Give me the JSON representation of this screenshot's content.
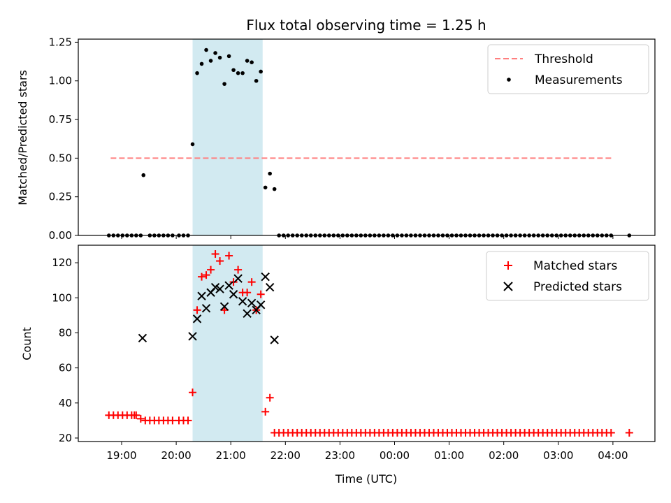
{
  "chart_data": [
    {
      "type": "scatter",
      "title": "Flux total observing time = 1.25 h",
      "xlabel": "",
      "ylabel": "Matched/Predicted stars",
      "ylim": [
        0,
        1.27
      ],
      "yticks": [
        "0.00",
        "0.25",
        "0.50",
        "0.75",
        "1.00",
        "1.25"
      ],
      "ytick_values": [
        0,
        0.25,
        0.5,
        0.75,
        1.0,
        1.25
      ],
      "legend_position": "top-right",
      "shaded_region": {
        "x": [
          "20:18",
          "21:35"
        ],
        "color": "#add8e6"
      },
      "threshold": {
        "name": "Threshold",
        "y": 0.5,
        "x": [
          "18:48",
          "04:00"
        ],
        "color": "#ff7f7f",
        "style": "dashed"
      },
      "series": [
        {
          "name": "Measurements",
          "color": "#000000",
          "marker": "dot",
          "x": [
            "18:46",
            "18:51",
            "18:56",
            "19:01",
            "19:06",
            "19:11",
            "19:16",
            "19:21",
            "19:24",
            "19:31",
            "19:36",
            "19:41",
            "19:46",
            "19:51",
            "19:56",
            "20:03",
            "20:08",
            "20:13",
            "20:18",
            "20:23",
            "20:28",
            "20:33",
            "20:38",
            "20:43",
            "20:48",
            "20:53",
            "20:58",
            "21:03",
            "21:08",
            "21:13",
            "21:18",
            "21:23",
            "21:28",
            "21:33",
            "21:38",
            "21:43",
            "21:48",
            "21:53",
            "21:58",
            "22:03",
            "22:08",
            "22:13",
            "22:18",
            "22:23",
            "22:28",
            "22:33",
            "22:38",
            "22:43",
            "22:48",
            "22:53",
            "22:58",
            "23:03",
            "23:08",
            "23:13",
            "23:18",
            "23:23",
            "23:28",
            "23:33",
            "23:38",
            "23:43",
            "23:48",
            "23:53",
            "23:58",
            "00:03",
            "00:08",
            "00:13",
            "00:18",
            "00:23",
            "00:28",
            "00:33",
            "00:38",
            "00:43",
            "00:48",
            "00:53",
            "00:58",
            "01:03",
            "01:08",
            "01:13",
            "01:18",
            "01:23",
            "01:28",
            "01:33",
            "01:38",
            "01:43",
            "01:48",
            "01:53",
            "01:58",
            "02:03",
            "02:08",
            "02:13",
            "02:18",
            "02:23",
            "02:28",
            "02:33",
            "02:38",
            "02:43",
            "02:48",
            "02:53",
            "02:58",
            "03:03",
            "03:08",
            "03:13",
            "03:18",
            "03:23",
            "03:28",
            "03:33",
            "03:38",
            "03:43",
            "03:48",
            "03:53",
            "03:58",
            "04:18"
          ],
          "y": [
            0,
            0,
            0,
            0,
            0,
            0,
            0,
            0,
            0.39,
            0,
            0,
            0,
            0,
            0,
            0,
            0,
            0,
            0,
            0.59,
            1.05,
            1.11,
            1.2,
            1.13,
            1.18,
            1.15,
            0.98,
            1.16,
            1.07,
            1.05,
            1.05,
            1.13,
            1.12,
            1.0,
            1.06,
            0.31,
            0.4,
            0.3,
            0,
            0,
            0,
            0,
            0,
            0,
            0,
            0,
            0,
            0,
            0,
            0,
            0,
            0,
            0,
            0,
            0,
            0,
            0,
            0,
            0,
            0,
            0,
            0,
            0,
            0,
            0,
            0,
            0,
            0,
            0,
            0,
            0,
            0,
            0,
            0,
            0,
            0,
            0,
            0,
            0,
            0,
            0,
            0,
            0,
            0,
            0,
            0,
            0,
            0,
            0,
            0,
            0,
            0,
            0,
            0,
            0,
            0,
            0,
            0,
            0,
            0,
            0,
            0,
            0,
            0,
            0,
            0,
            0,
            0,
            0,
            0,
            0,
            0,
            0
          ]
        }
      ]
    },
    {
      "type": "scatter",
      "title": "",
      "xlabel": "Time (UTC)",
      "ylabel": "Count",
      "ylim": [
        18,
        130
      ],
      "yticks": [
        "20",
        "40",
        "60",
        "80",
        "100",
        "120"
      ],
      "ytick_values": [
        20,
        40,
        60,
        80,
        100,
        120
      ],
      "xticks": [
        "19:00",
        "20:00",
        "21:00",
        "22:00",
        "23:00",
        "00:00",
        "01:00",
        "02:00",
        "03:00",
        "04:00"
      ],
      "legend_position": "top-right",
      "shaded_region": {
        "x": [
          "20:18",
          "21:35"
        ],
        "color": "#add8e6"
      },
      "series": [
        {
          "name": "Matched stars",
          "color": "#ff0000",
          "marker": "plus",
          "x": [
            "18:46",
            "18:51",
            "18:56",
            "19:01",
            "19:06",
            "19:11",
            "19:14",
            "19:16",
            "19:21",
            "19:26",
            "19:31",
            "19:36",
            "19:41",
            "19:46",
            "19:51",
            "19:56",
            "20:03",
            "20:08",
            "20:13",
            "20:18",
            "20:23",
            "20:28",
            "20:33",
            "20:38",
            "20:43",
            "20:48",
            "20:53",
            "20:58",
            "21:03",
            "21:08",
            "21:13",
            "21:18",
            "21:23",
            "21:28",
            "21:33",
            "21:38",
            "21:43",
            "21:48",
            "21:53",
            "21:58",
            "22:03",
            "22:08",
            "22:13",
            "22:18",
            "22:23",
            "22:28",
            "22:33",
            "22:38",
            "22:43",
            "22:48",
            "22:53",
            "22:58",
            "23:03",
            "23:08",
            "23:13",
            "23:18",
            "23:23",
            "23:28",
            "23:33",
            "23:38",
            "23:43",
            "23:48",
            "23:53",
            "23:58",
            "00:03",
            "00:08",
            "00:13",
            "00:18",
            "00:23",
            "00:28",
            "00:33",
            "00:38",
            "00:43",
            "00:48",
            "00:53",
            "00:58",
            "01:03",
            "01:08",
            "01:13",
            "01:18",
            "01:23",
            "01:28",
            "01:33",
            "01:38",
            "01:43",
            "01:48",
            "01:53",
            "01:58",
            "02:03",
            "02:08",
            "02:13",
            "02:18",
            "02:23",
            "02:28",
            "02:33",
            "02:38",
            "02:43",
            "02:48",
            "02:53",
            "02:58",
            "03:03",
            "03:08",
            "03:13",
            "03:18",
            "03:23",
            "03:28",
            "03:33",
            "03:38",
            "03:43",
            "03:48",
            "03:53",
            "03:58",
            "04:18"
          ],
          "y": [
            33,
            33,
            33,
            33,
            33,
            33,
            33,
            33,
            31,
            30,
            30,
            30,
            30,
            30,
            30,
            30,
            30,
            30,
            30,
            46,
            93,
            112,
            113,
            116,
            125,
            121,
            93,
            124,
            109,
            116,
            103,
            103,
            109,
            93,
            102,
            35,
            43,
            23,
            23,
            23,
            23,
            23,
            23,
            23,
            23,
            23,
            23,
            23,
            23,
            23,
            23,
            23,
            23,
            23,
            23,
            23,
            23,
            23,
            23,
            23,
            23,
            23,
            23,
            23,
            23,
            23,
            23,
            23,
            23,
            23,
            23,
            23,
            23,
            23,
            23,
            23,
            23,
            23,
            23,
            23,
            23,
            23,
            23,
            23,
            23,
            23,
            23,
            23,
            23,
            23,
            23,
            23,
            23,
            23,
            23,
            23,
            23,
            23,
            23,
            23,
            23,
            23,
            23,
            23,
            23,
            23,
            23,
            23,
            23,
            23,
            23,
            23,
            23
          ]
        },
        {
          "name": "Predicted stars",
          "color": "#000000",
          "marker": "x",
          "x": [
            "19:23",
            "20:18",
            "20:23",
            "20:28",
            "20:33",
            "20:38",
            "20:43",
            "20:48",
            "20:53",
            "20:58",
            "21:03",
            "21:08",
            "21:13",
            "21:18",
            "21:23",
            "21:28",
            "21:33",
            "21:38",
            "21:43",
            "21:48"
          ],
          "y": [
            77,
            78,
            88,
            101,
            94,
            103,
            106,
            105,
            95,
            107,
            102,
            111,
            98,
            91,
            97,
            93,
            96,
            112,
            106,
            76
          ]
        }
      ]
    }
  ]
}
